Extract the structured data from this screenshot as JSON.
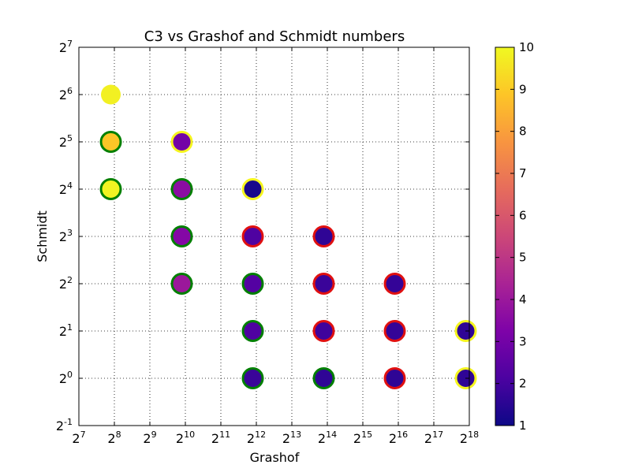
{
  "chart_data": {
    "type": "scatter",
    "title": "C3 vs Grashof and Schmidt numbers",
    "xlabel": "Grashof",
    "ylabel": "Schmidt",
    "x_scale": "log2",
    "y_scale": "log2",
    "xlim": [
      7,
      18
    ],
    "ylim": [
      -1,
      7
    ],
    "x_ticks": [
      {
        "base": "2",
        "exp": "7"
      },
      {
        "base": "2",
        "exp": "8"
      },
      {
        "base": "2",
        "exp": "9"
      },
      {
        "base": "2",
        "exp": "10"
      },
      {
        "base": "2",
        "exp": "11"
      },
      {
        "base": "2",
        "exp": "12"
      },
      {
        "base": "2",
        "exp": "13"
      },
      {
        "base": "2",
        "exp": "14"
      },
      {
        "base": "2",
        "exp": "15"
      },
      {
        "base": "2",
        "exp": "16"
      },
      {
        "base": "2",
        "exp": "17"
      },
      {
        "base": "2",
        "exp": "18"
      }
    ],
    "y_ticks": [
      {
        "base": "2",
        "exp": "-1"
      },
      {
        "base": "2",
        "exp": "0"
      },
      {
        "base": "2",
        "exp": "1"
      },
      {
        "base": "2",
        "exp": "2"
      },
      {
        "base": "2",
        "exp": "3"
      },
      {
        "base": "2",
        "exp": "4"
      },
      {
        "base": "2",
        "exp": "5"
      },
      {
        "base": "2",
        "exp": "6"
      },
      {
        "base": "2",
        "exp": "7"
      }
    ],
    "grid": true,
    "colormap": "plasma",
    "colorbar": {
      "min": 1,
      "max": 10,
      "ticks": [
        "1",
        "2",
        "3",
        "4",
        "5",
        "6",
        "7",
        "8",
        "9",
        "10"
      ]
    },
    "edge_colors": {
      "yellow": "#f5f51e",
      "green": "#007f00",
      "red": "#e01010",
      "none": "none"
    },
    "points": [
      {
        "x": 7.9,
        "y": 6,
        "c": 9.8,
        "edge": "none"
      },
      {
        "x": 7.9,
        "y": 5,
        "c": 8.9,
        "edge": "green"
      },
      {
        "x": 7.9,
        "y": 4,
        "c": 9.9,
        "edge": "green"
      },
      {
        "x": 9.9,
        "y": 5,
        "c": 3.0,
        "edge": "yellow"
      },
      {
        "x": 9.9,
        "y": 4,
        "c": 3.6,
        "edge": "green"
      },
      {
        "x": 9.9,
        "y": 3,
        "c": 3.4,
        "edge": "green"
      },
      {
        "x": 9.9,
        "y": 2,
        "c": 4.0,
        "edge": "green"
      },
      {
        "x": 11.9,
        "y": 4,
        "c": 1.2,
        "edge": "yellow"
      },
      {
        "x": 11.9,
        "y": 3,
        "c": 2.2,
        "edge": "red"
      },
      {
        "x": 11.9,
        "y": 2,
        "c": 2.3,
        "edge": "green"
      },
      {
        "x": 11.9,
        "y": 1,
        "c": 2.2,
        "edge": "green"
      },
      {
        "x": 11.9,
        "y": 0,
        "c": 1.8,
        "edge": "green"
      },
      {
        "x": 13.9,
        "y": 3,
        "c": 1.6,
        "edge": "red"
      },
      {
        "x": 13.9,
        "y": 2,
        "c": 1.8,
        "edge": "red"
      },
      {
        "x": 13.9,
        "y": 1,
        "c": 1.9,
        "edge": "red"
      },
      {
        "x": 13.9,
        "y": 0,
        "c": 1.6,
        "edge": "green"
      },
      {
        "x": 15.9,
        "y": 2,
        "c": 1.7,
        "edge": "red"
      },
      {
        "x": 15.9,
        "y": 1,
        "c": 1.7,
        "edge": "red"
      },
      {
        "x": 15.9,
        "y": 0,
        "c": 1.6,
        "edge": "red"
      },
      {
        "x": 17.9,
        "y": 1,
        "c": 1.6,
        "edge": "yellow"
      },
      {
        "x": 17.9,
        "y": 0,
        "c": 1.6,
        "edge": "yellow"
      }
    ]
  }
}
